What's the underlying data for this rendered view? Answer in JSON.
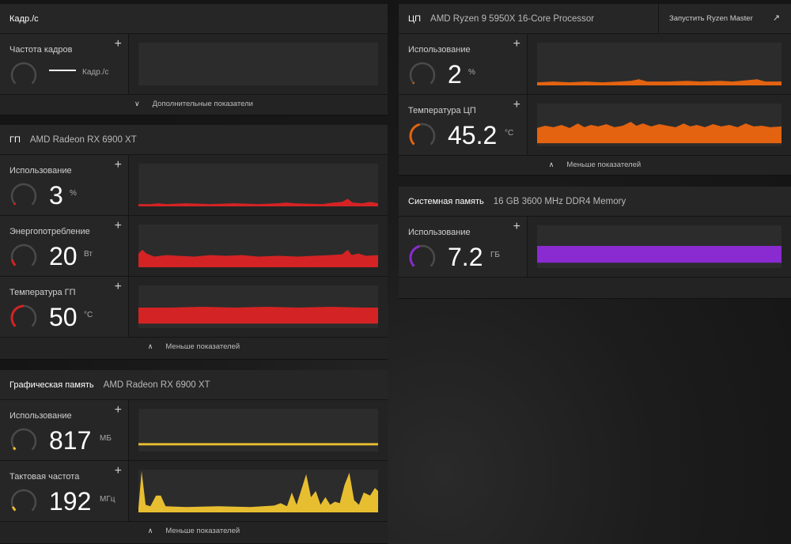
{
  "colors": {
    "gpu": "#d42324",
    "cpu": "#e36310",
    "vram": "#e8be31",
    "sysmem": "#8a2bd2",
    "gauge_track": "#4a4a4a"
  },
  "fps": {
    "title": "Кадр./с",
    "metric_label": "Частота кадров",
    "unit": "Кадр./с",
    "footer": "Дополнительные показатели"
  },
  "gpu": {
    "title": "ГП",
    "subtitle": "AMD Radeon RX 6900 XT",
    "usage": {
      "label": "Использование",
      "value": "3",
      "unit": "%",
      "level": 0.03
    },
    "power": {
      "label": "Энергопотребление",
      "value": "20",
      "unit": "Вт",
      "level": 0.12
    },
    "temp": {
      "label": "Температура ГП",
      "value": "50",
      "unit": "°C",
      "level": 0.5
    },
    "footer": "Меньше показателей"
  },
  "vram": {
    "title": "Графическая память",
    "subtitle": "AMD Radeon RX 6900 XT",
    "usage": {
      "label": "Использование",
      "value": "817",
      "unit": "МБ",
      "level": 0.05
    },
    "clock": {
      "label": "Тактовая частота",
      "value": "192",
      "unit": "МГц",
      "level": 0.08
    },
    "footer": "Меньше показателей"
  },
  "cpu": {
    "title": "ЦП",
    "subtitle": "AMD Ryzen 9 5950X 16-Core Processor",
    "ryzen_master": "Запустить Ryzen Master",
    "usage": {
      "label": "Использование",
      "value": "2",
      "unit": "%",
      "level": 0.02
    },
    "temp": {
      "label": "Температура ЦП",
      "value": "45.2",
      "unit": "°C",
      "level": 0.45
    },
    "footer": "Меньше показателей"
  },
  "sysmem": {
    "title": "Системная память",
    "subtitle": "16 GB 3600 MHz DDR4 Memory",
    "usage": {
      "label": "Использование",
      "value": "7.2",
      "unit": "ГБ",
      "level": 0.45
    }
  }
}
